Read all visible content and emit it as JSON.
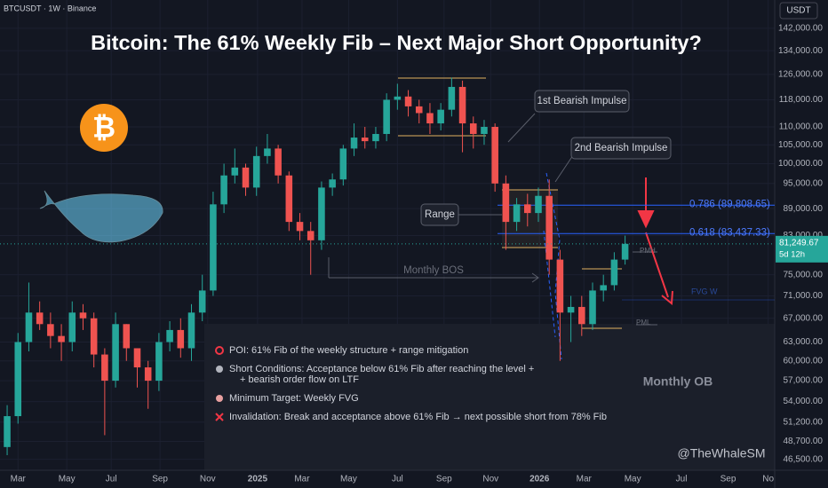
{
  "chart_data": {
    "type": "candlestick",
    "symbol": "BTCUSDT · 1W · Binance",
    "currency": "USDT",
    "title": "Bitcoin: The 61% Weekly Fib – Next Major Short Opportunity?",
    "logo": "₿",
    "log_scale": true,
    "ylim": [
      45200,
      152800
    ],
    "yticks": [
      {
        "value": 142000,
        "label": "142,000.00"
      },
      {
        "value": 134000,
        "label": "134,000.00"
      },
      {
        "value": 126000,
        "label": "126,000.00"
      },
      {
        "value": 118000,
        "label": "118,000.00"
      },
      {
        "value": 110000,
        "label": "110,000.00"
      },
      {
        "value": 105000,
        "label": "105,000.00"
      },
      {
        "value": 100000,
        "label": "100,000.00"
      },
      {
        "value": 95000,
        "label": "95,000.00"
      },
      {
        "value": 89000,
        "label": "89,000.00"
      },
      {
        "value": 83000,
        "label": "83,000.00"
      },
      {
        "value": 75000,
        "label": "75,000.00"
      },
      {
        "value": 71000,
        "label": "71,000.00"
      },
      {
        "value": 67000,
        "label": "67,000.00"
      },
      {
        "value": 63000,
        "label": "63,000.00"
      },
      {
        "value": 60000,
        "label": "60,000.00"
      },
      {
        "value": 57000,
        "label": "57,000.00"
      },
      {
        "value": 54000,
        "label": "54,000.00"
      },
      {
        "value": 51200,
        "label": "51,200.00"
      },
      {
        "value": 48700,
        "label": "48,700.00"
      },
      {
        "value": 46500,
        "label": "46,500.00"
      }
    ],
    "xlim": [
      -0.66,
      70.8
    ],
    "xticks": [
      {
        "value": 1,
        "label": "Mar"
      },
      {
        "value": 5.5,
        "label": "May"
      },
      {
        "value": 9.6,
        "label": "Jul"
      },
      {
        "value": 14.1,
        "label": "Sep"
      },
      {
        "value": 18.5,
        "label": "Nov"
      },
      {
        "value": 23.1,
        "label": "2025"
      },
      {
        "value": 27.2,
        "label": "Mar"
      },
      {
        "value": 31.5,
        "label": "May"
      },
      {
        "value": 36,
        "label": "Jul"
      },
      {
        "value": 40.3,
        "label": "Sep"
      },
      {
        "value": 44.6,
        "label": "Nov"
      },
      {
        "value": 49.1,
        "label": "2026"
      },
      {
        "value": 53.2,
        "label": "Mar"
      },
      {
        "value": 57.7,
        "label": "May"
      },
      {
        "value": 62.2,
        "label": "Jul"
      },
      {
        "value": 66.5,
        "label": "Sep"
      },
      {
        "value": 70.2,
        "label": "No"
      }
    ],
    "up_color": "#26a69a",
    "down_color": "#ef5350",
    "open": [
      48000,
      52000,
      63000,
      68000,
      66000,
      64000,
      63000,
      68000,
      67000,
      61000,
      57000,
      66000,
      62000,
      59000,
      57000,
      63000,
      65000,
      62000,
      68000,
      72000,
      90000,
      97000,
      99000,
      94000,
      102000,
      104000,
      97000,
      86000,
      84000,
      82000,
      94000,
      96000,
      104000,
      107000,
      106000,
      108000,
      118000,
      119000,
      116000,
      114000,
      111000,
      115000,
      122000,
      111000,
      108000,
      110000,
      95000,
      86000,
      90000,
      88000,
      92000,
      78000,
      68000,
      69000,
      66000,
      72000,
      73000,
      78000
    ],
    "high": [
      53500,
      64500,
      73500,
      70000,
      68000,
      66000,
      70000,
      69500,
      68000,
      62000,
      68000,
      66000,
      62000,
      60000,
      64500,
      66500,
      67000,
      69500,
      75000,
      93000,
      100000,
      104000,
      100000,
      104500,
      108000,
      105000,
      98000,
      88000,
      86000,
      95500,
      97500,
      105000,
      111000,
      110000,
      110000,
      120000,
      123000,
      121000,
      118000,
      117000,
      117000,
      125000,
      124000,
      113000,
      112000,
      111000,
      97000,
      91500,
      92500,
      94000,
      96000,
      80000,
      71000,
      71000,
      73500,
      75000,
      79500,
      83000
    ],
    "low": [
      47000,
      51000,
      61500,
      65000,
      62000,
      60000,
      61500,
      65000,
      59000,
      49500,
      56000,
      60000,
      56000,
      53000,
      55500,
      61500,
      60500,
      60000,
      66500,
      71000,
      88000,
      95000,
      92000,
      92000,
      100000,
      95000,
      84000,
      82000,
      75000,
      80000,
      92000,
      94500,
      102000,
      104000,
      104000,
      106000,
      115000,
      113000,
      111000,
      108000,
      109000,
      113000,
      103000,
      104000,
      105000,
      93000,
      80000,
      84000,
      85000,
      86000,
      75000,
      60000,
      63000,
      64000,
      65000,
      70000,
      72000,
      77000
    ],
    "close": [
      52000,
      63000,
      68000,
      66000,
      64000,
      63000,
      68000,
      67000,
      61000,
      57000,
      66000,
      62000,
      59000,
      57000,
      63000,
      65000,
      62000,
      68000,
      72000,
      90000,
      97000,
      99000,
      94000,
      102000,
      104000,
      97000,
      86000,
      84000,
      82000,
      94000,
      96000,
      104000,
      107000,
      106000,
      108000,
      118000,
      119000,
      116000,
      114000,
      111000,
      115000,
      122000,
      111000,
      108000,
      110000,
      95000,
      86000,
      90000,
      88000,
      92000,
      78000,
      68000,
      69000,
      66000,
      72000,
      73000,
      78000,
      81249.67
    ],
    "last_price": {
      "value": 81249.67,
      "label": "81,249.67"
    },
    "countdown": "5d 12h",
    "fib_levels": [
      {
        "value": 89808.65,
        "label": "0.786 (89,808.65)"
      },
      {
        "value": 83437.33,
        "label": "0.618 (83,437.33)"
      }
    ],
    "annotations": {
      "impulse1": "1st Bearish Impulse",
      "impulse2": "2nd Bearish Impulse",
      "range": "Range",
      "bos": "Monthly BOS",
      "pmh": "PMH",
      "pml": "PML",
      "fvg": "FVG W",
      "ob": "Monthly OB",
      "author": "@TheWhaleSM"
    },
    "notes": [
      "POI: 61% Fib of the weekly structure + range mitigation",
      "Short Conditions: Acceptance below 61% Fib after reaching the level +",
      "+ bearish order flow on LTF",
      "Minimum Target: Weekly FVG",
      "Invalidation: Break and acceptance above 61% Fib → next possible short from 78% Fib"
    ]
  }
}
